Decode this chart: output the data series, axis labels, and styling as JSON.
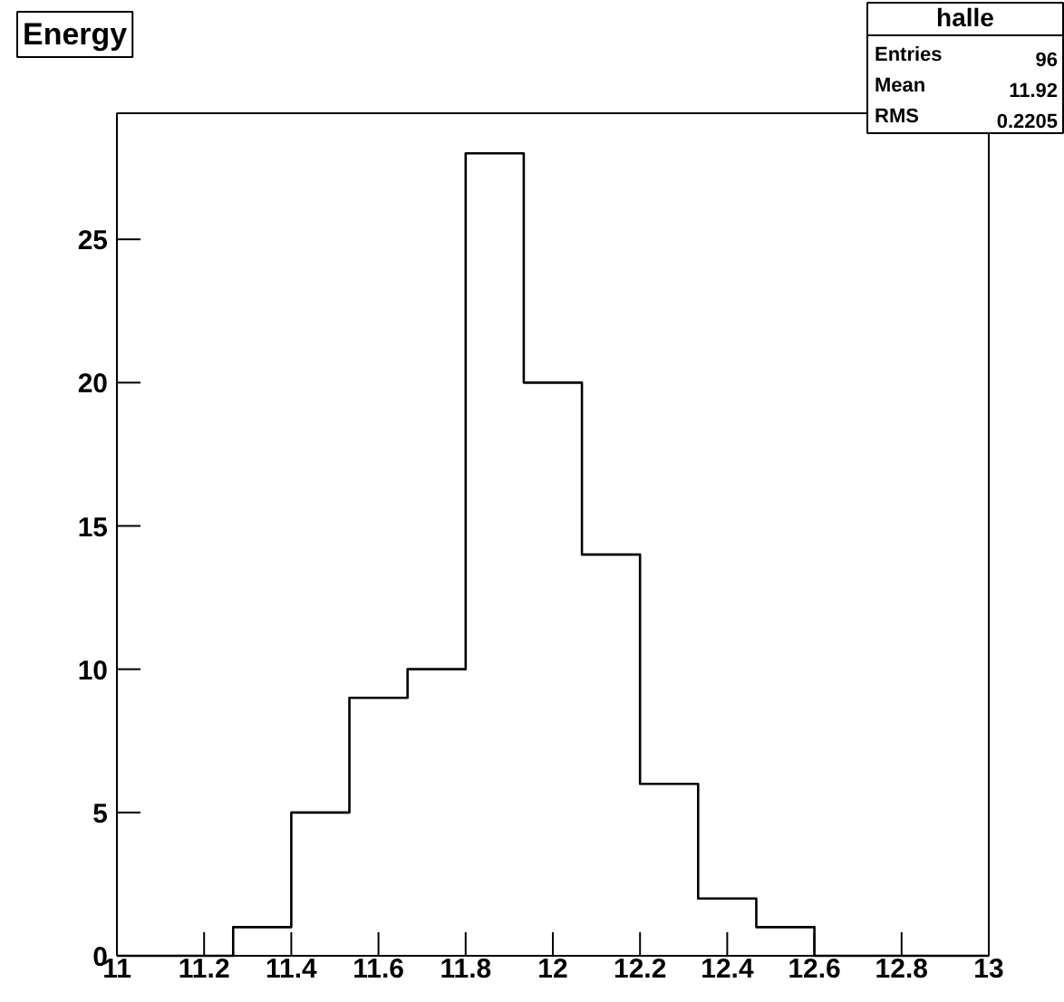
{
  "chart_data": {
    "type": "histogram",
    "title": "Energy",
    "bins": [
      11,
      11.1333,
      11.2667,
      11.4,
      11.5333,
      11.6667,
      11.8,
      11.9333,
      12.0667,
      12.2,
      12.3333,
      12.4667,
      12.6,
      12.7333,
      12.8667,
      13
    ],
    "values": [
      0,
      0,
      1,
      5,
      9,
      10,
      28,
      20,
      14,
      6,
      2,
      1,
      0,
      0,
      0
    ],
    "color": "#000000",
    "xlim": [
      11,
      13
    ],
    "ylim": [
      0,
      29.4
    ],
    "xticks": [
      11,
      11.2,
      11.4,
      11.6,
      11.8,
      12,
      12.2,
      12.4,
      12.6,
      12.8,
      13
    ],
    "yticks": [
      0,
      5,
      10,
      15,
      20,
      25
    ],
    "annotations": [
      "halle",
      "Entries",
      "96",
      "Mean",
      "11.92",
      "RMS",
      "0.2205"
    ],
    "grid": false
  }
}
